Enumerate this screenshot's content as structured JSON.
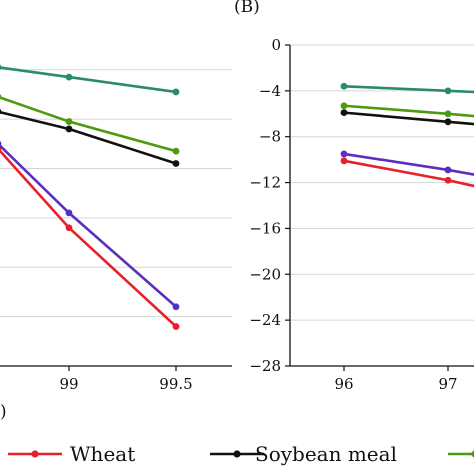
{
  "chart_data": [
    {
      "type": "line",
      "panel": "",
      "x": [
        98.5,
        99,
        99.5
      ],
      "x_tick_labels": [
        "99",
        "99.5"
      ],
      "ylim": [
        -32,
        -6
      ],
      "grid": true,
      "series": [
        {
          "name": "Wheat",
          "color": "#e8202a",
          "values": [
            -14.4,
            -20.8,
            -28.8
          ]
        },
        {
          "name": "Soybean meal",
          "color": "#111111",
          "values": [
            -11.4,
            -12.8,
            -15.6
          ]
        },
        {
          "name": "",
          "color": "#4e9a0f",
          "values": [
            -10.2,
            -12.2,
            -14.6
          ]
        },
        {
          "name": "",
          "color": "#2a8a6a",
          "values": [
            -7.8,
            -8.6,
            -9.8
          ]
        },
        {
          "name": "",
          "color": "#5a2fc0",
          "values": [
            -14.0,
            -19.6,
            -27.2
          ]
        }
      ]
    },
    {
      "type": "line",
      "panel": "(B)",
      "x": [
        96,
        97,
        97.5
      ],
      "x_tick_labels": [
        "96",
        "97"
      ],
      "y_tick_labels": [
        "0",
        "−4",
        "−8",
        "−12",
        "−16",
        "−20",
        "−24",
        "−28"
      ],
      "ylim": [
        -28,
        0
      ],
      "grid": true,
      "series": [
        {
          "name": "Wheat",
          "color": "#e8202a",
          "values": [
            -10.1,
            -11.8,
            -12.8
          ]
        },
        {
          "name": "Soybean meal",
          "color": "#111111",
          "values": [
            -5.9,
            -6.7,
            -7.1
          ]
        },
        {
          "name": "",
          "color": "#4e9a0f",
          "values": [
            -5.3,
            -6.0,
            -6.4
          ]
        },
        {
          "name": "",
          "color": "#2a8a6a",
          "values": [
            -3.6,
            -4.0,
            -4.2
          ]
        },
        {
          "name": "",
          "color": "#5a2fc0",
          "values": [
            -9.5,
            -10.9,
            -11.7
          ]
        }
      ]
    }
  ],
  "legend": {
    "items": [
      {
        "label": "Wheat",
        "color": "#e8202a"
      },
      {
        "label": "Soybean meal",
        "color": "#111111"
      },
      {
        "label": "",
        "color": "#4e9a0f"
      }
    ]
  },
  "bottom_label_fragment": ")"
}
